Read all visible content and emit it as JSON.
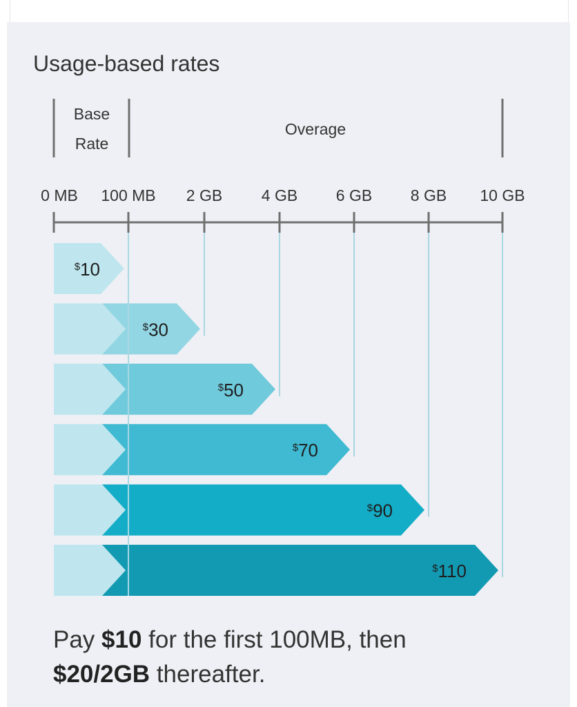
{
  "card": {
    "title": "Usage-based rates"
  },
  "chart_data": {
    "type": "bar",
    "title": "Usage-based rates",
    "segment_labels": {
      "base": [
        "Base",
        "Rate"
      ],
      "overage": "Overage"
    },
    "axis": {
      "ticks": [
        "0 MB",
        "100 MB",
        "2 GB",
        "4 GB",
        "6 GB",
        "8 GB",
        "10 GB"
      ],
      "range": [
        "0 MB",
        "10 GB"
      ]
    },
    "bars": [
      {
        "label": "$10",
        "price": 10,
        "usage_limit": "100 MB",
        "color": "#bfe6ee"
      },
      {
        "label": "$30",
        "price": 30,
        "usage_limit": "2 GB",
        "color": "#93d6e3"
      },
      {
        "label": "$50",
        "price": 50,
        "usage_limit": "4 GB",
        "color": "#6fcadc"
      },
      {
        "label": "$70",
        "price": 70,
        "usage_limit": "6 GB",
        "color": "#3fbad2"
      },
      {
        "label": "$90",
        "price": 90,
        "usage_limit": "8 GB",
        "color": "#14adc7"
      },
      {
        "label": "$110",
        "price": 110,
        "usage_limit": "10 GB",
        "color": "#129ab2"
      }
    ],
    "base_segment_color": "#bfe6ee",
    "axis_color": "#6f6f6f",
    "gridline_color": "#a9d7e2"
  },
  "footer": {
    "prefix": "Pay ",
    "base_price": "$10",
    "middle": " for the first 100MB, then",
    "overage_price": "$20/2GB",
    "suffix": " thereafter."
  }
}
